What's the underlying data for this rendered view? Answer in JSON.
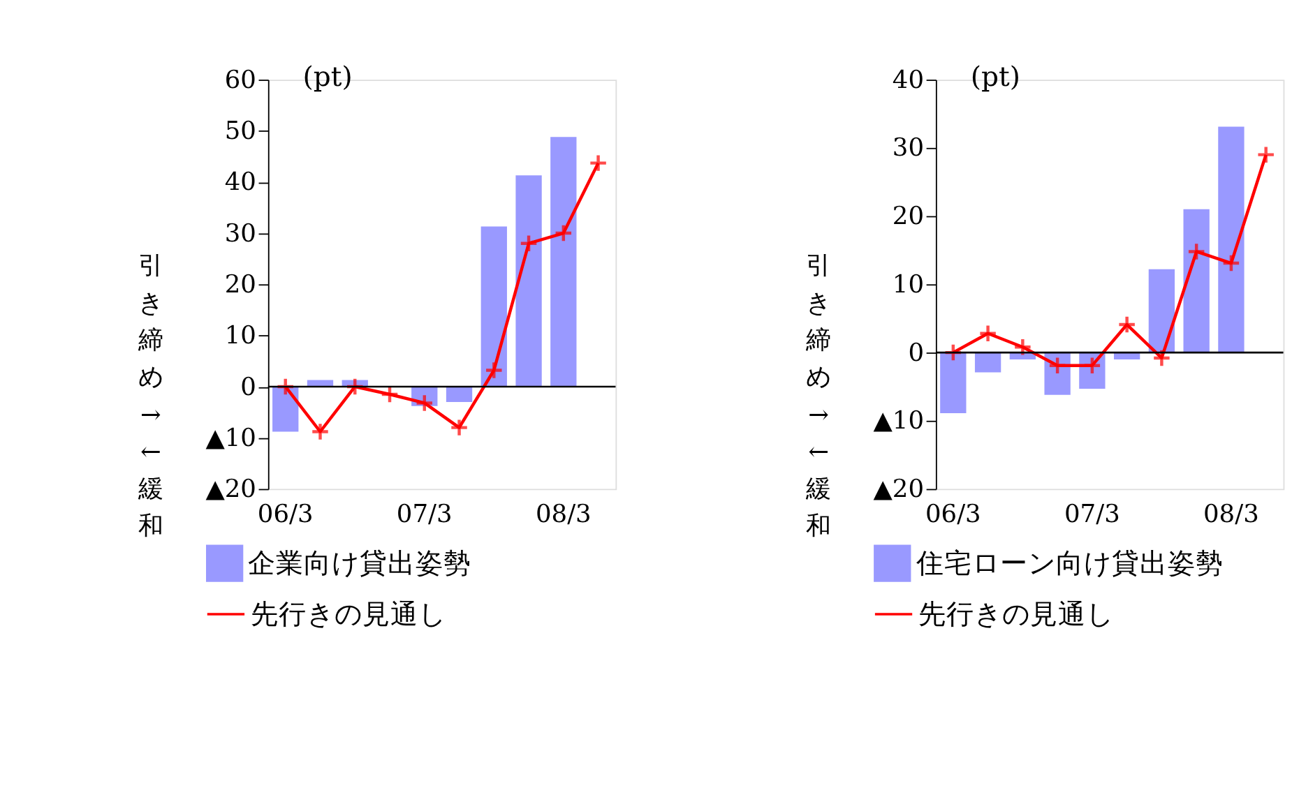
{
  "chart_data": [
    {
      "type": "bar",
      "categories": [
        "06/3",
        null,
        null,
        null,
        "07/3",
        null,
        null,
        null,
        "08/3",
        null
      ],
      "ylabel": "引き締め→←緩和",
      "annotations": [
        "(pt)"
      ],
      "ylim": [
        -20,
        60
      ],
      "yticks": [
        {
          "value": -20,
          "label": "▲20"
        },
        {
          "value": -10,
          "label": "▲10"
        },
        0,
        10,
        20,
        30,
        40,
        50,
        60
      ],
      "grid": false,
      "legend": "bottom",
      "ref_lines": [
        {
          "axis": "y",
          "value": 0
        }
      ],
      "series": [
        {
          "name": "企業向け貸出姿勢",
          "color": "#9999ff",
          "values": [
            -8.8,
            1.3,
            1.3,
            null,
            -3.8,
            -3,
            31.3,
            41.3,
            48.8,
            null
          ]
        },
        {
          "name": "先行きの見通し",
          "type": "line",
          "color": "#ff0000",
          "marker": "cross",
          "values": [
            0,
            -8.8,
            0,
            -1.5,
            -3.2,
            -8,
            3.2,
            28,
            30,
            43.7
          ]
        }
      ]
    },
    {
      "type": "bar",
      "categories": [
        "06/3",
        null,
        null,
        null,
        "07/3",
        null,
        null,
        null,
        "08/3",
        null
      ],
      "ylabel": "引き締め→←緩和",
      "annotations": [
        "(pt)"
      ],
      "ylim": [
        -20,
        40
      ],
      "yticks": [
        {
          "value": -20,
          "label": "▲20"
        },
        {
          "value": -10,
          "label": "▲10"
        },
        0,
        10,
        20,
        30,
        40
      ],
      "grid": false,
      "legend": "bottom",
      "ref_lines": [
        {
          "axis": "y",
          "value": 0
        }
      ],
      "series": [
        {
          "name": "住宅ローン向け貸出姿勢",
          "color": "#9999ff",
          "values": [
            -8.9,
            -2.9,
            -1,
            -6.2,
            -5.3,
            -1,
            12.2,
            21,
            33.1,
            null
          ]
        },
        {
          "name": "先行きの見通し",
          "type": "line",
          "color": "#ff0000",
          "marker": "cross",
          "values": [
            0,
            2.8,
            0.8,
            -1.9,
            -1.9,
            4.1,
            -0.8,
            14.8,
            13.1,
            29
          ]
        }
      ]
    }
  ]
}
